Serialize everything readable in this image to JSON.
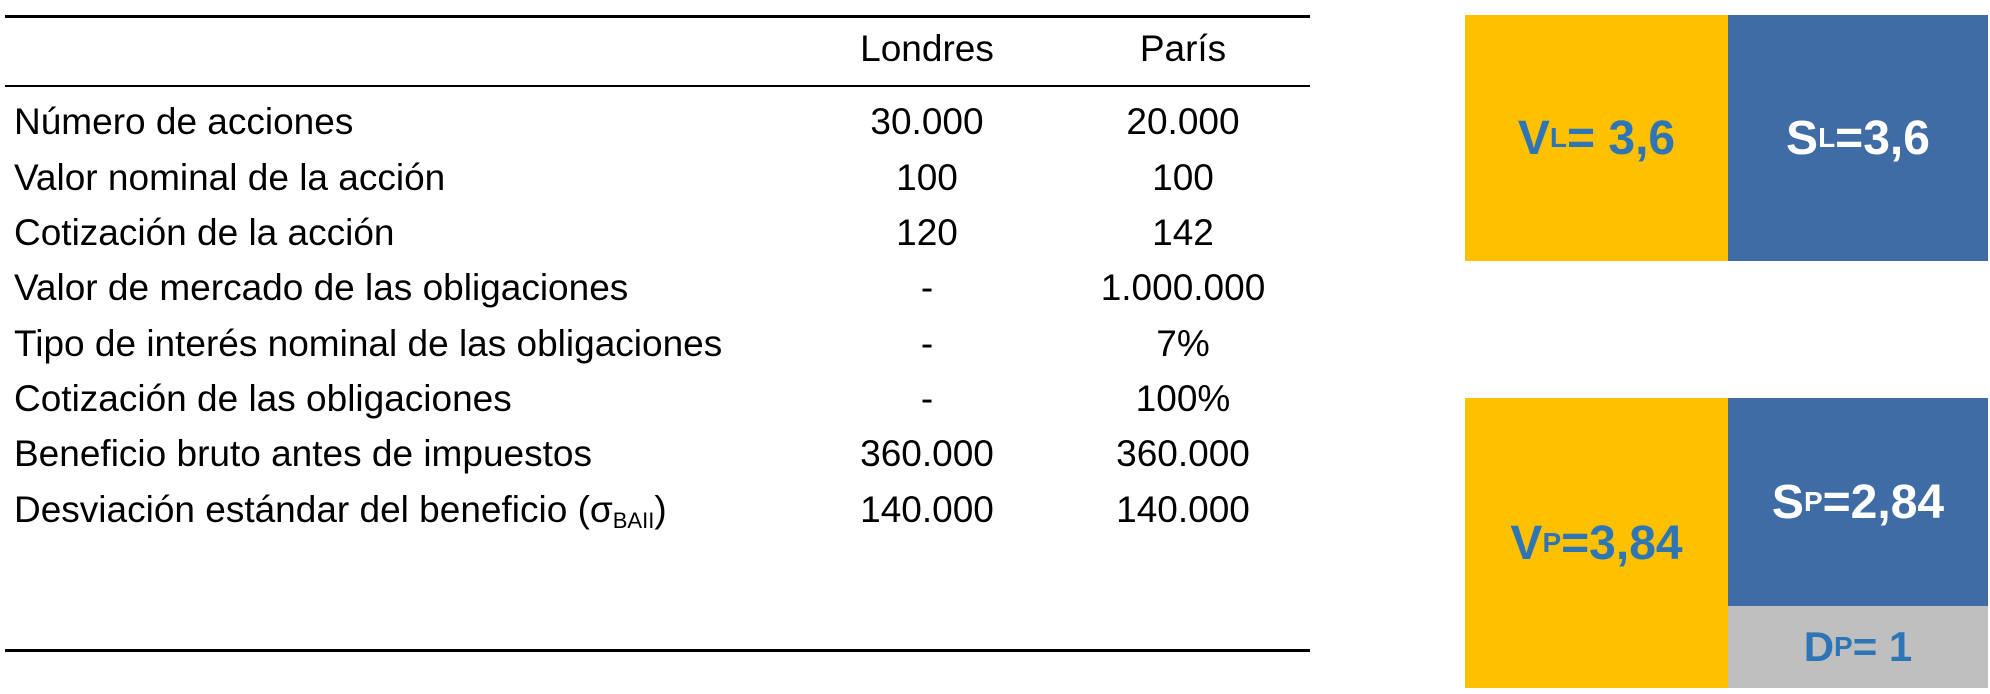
{
  "table": {
    "columns": [
      "Londres",
      "París"
    ],
    "rows": [
      {
        "label": "Número de acciones",
        "londres": "30.000",
        "paris": "20.000"
      },
      {
        "label": "Valor nominal de la acción",
        "londres": "100",
        "paris": "100"
      },
      {
        "label": "Cotización de la acción",
        "londres": "120",
        "paris": "142"
      },
      {
        "label": "Valor de mercado de las obligaciones",
        "londres": "-",
        "paris": "1.000.000"
      },
      {
        "label": "Tipo de interés nominal de las obligaciones",
        "londres": "-",
        "paris": "7%"
      },
      {
        "label": "Cotización de las obligaciones",
        "londres": "-",
        "paris": "100%"
      },
      {
        "label": "Beneficio bruto antes de impuestos",
        "londres": "360.000",
        "paris": "360.000"
      },
      {
        "label": "Desviación estándar del beneficio (σ",
        "label_sub": "BAII",
        "label_end": ")",
        "londres": "140.000",
        "paris": "140.000"
      }
    ]
  },
  "diagram": {
    "londres": {
      "v": {
        "symbol": "V",
        "sub": "L",
        "value": "= 3,6"
      },
      "s": {
        "symbol": "S",
        "sub": "L",
        "value": "=3,6"
      }
    },
    "paris": {
      "v": {
        "symbol": "V",
        "sub": "P",
        "value": "=3,84"
      },
      "s": {
        "symbol": "S",
        "sub": "P",
        "value": "=2,84"
      },
      "d": {
        "symbol": "D",
        "sub": "P",
        "value": "= 1"
      }
    }
  },
  "colors": {
    "equity_total": "#FFC000",
    "shares": "#3F6CA5",
    "debt": "#BFBFBF",
    "label_blue": "#2E75B6"
  }
}
